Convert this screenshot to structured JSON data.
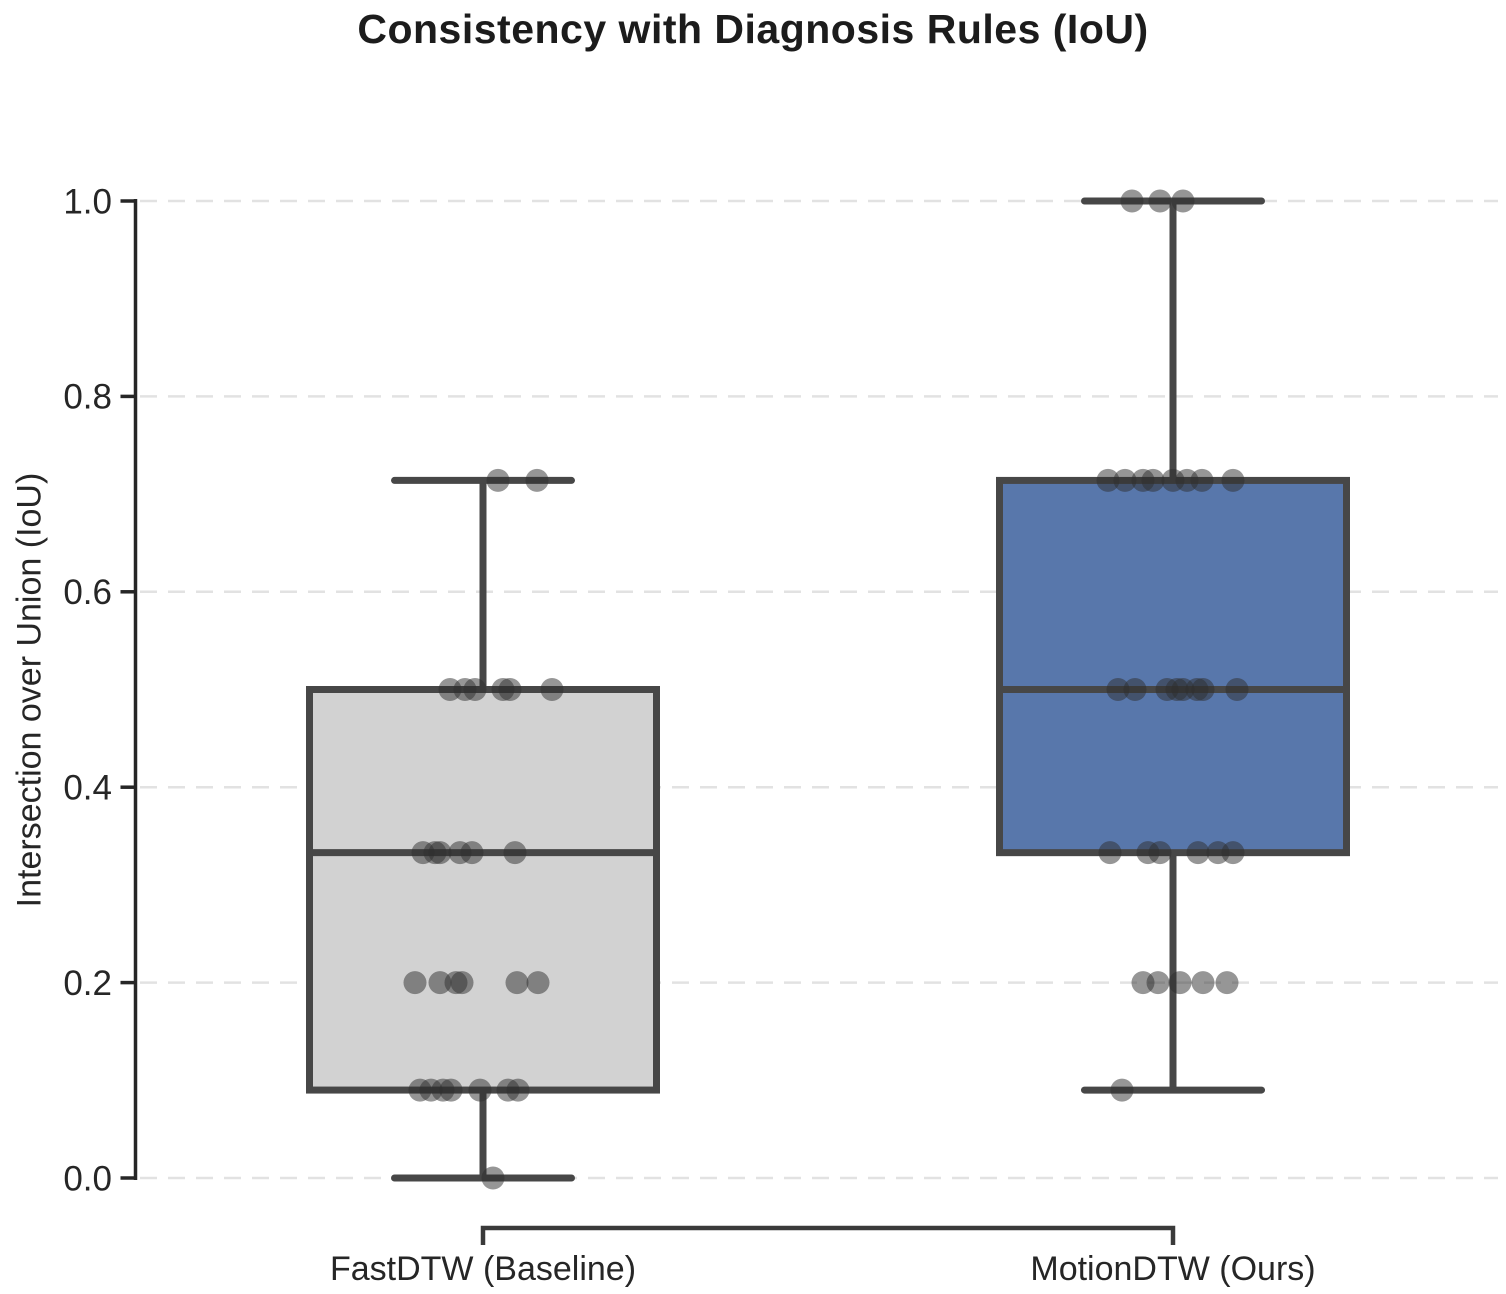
{
  "chart_data": {
    "type": "box",
    "title": "Consistency with Diagnosis Rules (IoU)",
    "ylabel": "Intersection over Union (IoU)",
    "xlabel": "",
    "categories": [
      "FastDTW (Baseline)",
      "MotionDTW (Ours)"
    ],
    "ylim": [
      0.0,
      1.0
    ],
    "yticks": [
      0.0,
      0.2,
      0.4,
      0.6,
      0.8,
      1.0
    ],
    "ytick_labels": [
      "0.0",
      "0.2",
      "0.4",
      "0.6",
      "0.8",
      "1.0"
    ],
    "grid": "horizontal-dashed",
    "legend": "none",
    "series": [
      {
        "name": "FastDTW (Baseline)",
        "fill": "#d2d2d2",
        "box": {
          "whisker_low": 0.0,
          "q1": 0.09,
          "median": 0.333,
          "q3": 0.5,
          "whisker_high": 0.714
        },
        "points": [
          {
            "v": 0.714,
            "j": 15
          },
          {
            "v": 0.714,
            "j": 54
          },
          {
            "v": 0.5,
            "j": -33
          },
          {
            "v": 0.5,
            "j": -18
          },
          {
            "v": 0.5,
            "j": -8
          },
          {
            "v": 0.5,
            "j": 20
          },
          {
            "v": 0.5,
            "j": 27
          },
          {
            "v": 0.5,
            "j": 69
          },
          {
            "v": 0.333,
            "j": -60
          },
          {
            "v": 0.333,
            "j": -48
          },
          {
            "v": 0.333,
            "j": -43
          },
          {
            "v": 0.333,
            "j": -23
          },
          {
            "v": 0.333,
            "j": -11
          },
          {
            "v": 0.333,
            "j": 32
          },
          {
            "v": 0.2,
            "j": -68
          },
          {
            "v": 0.2,
            "j": -43
          },
          {
            "v": 0.2,
            "j": -27
          },
          {
            "v": 0.2,
            "j": -21
          },
          {
            "v": 0.2,
            "j": 34
          },
          {
            "v": 0.2,
            "j": 55
          },
          {
            "v": 0.09,
            "j": -63
          },
          {
            "v": 0.09,
            "j": -52
          },
          {
            "v": 0.09,
            "j": -40
          },
          {
            "v": 0.09,
            "j": -32
          },
          {
            "v": 0.09,
            "j": -3
          },
          {
            "v": 0.09,
            "j": 25
          },
          {
            "v": 0.09,
            "j": 35
          },
          {
            "v": 0.0,
            "j": 10
          }
        ]
      },
      {
        "name": "MotionDTW (Ours)",
        "fill": "#5877ab",
        "box": {
          "whisker_low": 0.09,
          "q1": 0.333,
          "median": 0.5,
          "q3": 0.714,
          "whisker_high": 1.0
        },
        "points": [
          {
            "v": 1.0,
            "j": -41
          },
          {
            "v": 1.0,
            "j": -13
          },
          {
            "v": 1.0,
            "j": 10
          },
          {
            "v": 0.714,
            "j": -65
          },
          {
            "v": 0.714,
            "j": -48
          },
          {
            "v": 0.714,
            "j": -30
          },
          {
            "v": 0.714,
            "j": -20
          },
          {
            "v": 0.714,
            "j": 0
          },
          {
            "v": 0.714,
            "j": 14
          },
          {
            "v": 0.714,
            "j": 29
          },
          {
            "v": 0.714,
            "j": 60
          },
          {
            "v": 0.5,
            "j": -55
          },
          {
            "v": 0.5,
            "j": -38
          },
          {
            "v": 0.5,
            "j": -6
          },
          {
            "v": 0.5,
            "j": 4
          },
          {
            "v": 0.5,
            "j": 10
          },
          {
            "v": 0.5,
            "j": 24
          },
          {
            "v": 0.5,
            "j": 30
          },
          {
            "v": 0.5,
            "j": 64
          },
          {
            "v": 0.333,
            "j": -63
          },
          {
            "v": 0.333,
            "j": -25
          },
          {
            "v": 0.333,
            "j": -13
          },
          {
            "v": 0.333,
            "j": 25
          },
          {
            "v": 0.333,
            "j": 45
          },
          {
            "v": 0.333,
            "j": 60
          },
          {
            "v": 0.2,
            "j": -30
          },
          {
            "v": 0.2,
            "j": -15
          },
          {
            "v": 0.2,
            "j": 7
          },
          {
            "v": 0.2,
            "j": 30
          },
          {
            "v": 0.2,
            "j": 54
          },
          {
            "v": 0.09,
            "j": -51
          }
        ]
      }
    ],
    "colors": {
      "background": "#ffffff",
      "grid": "#e2e2e2",
      "axis": "#262626",
      "tick_text": "#262626",
      "title_text": "#1c1c1c",
      "box_edge": "#474747",
      "whisker": "#474747",
      "median": "#474747",
      "point": "#2e2e2e",
      "bracket": "#3a3a3a"
    }
  }
}
